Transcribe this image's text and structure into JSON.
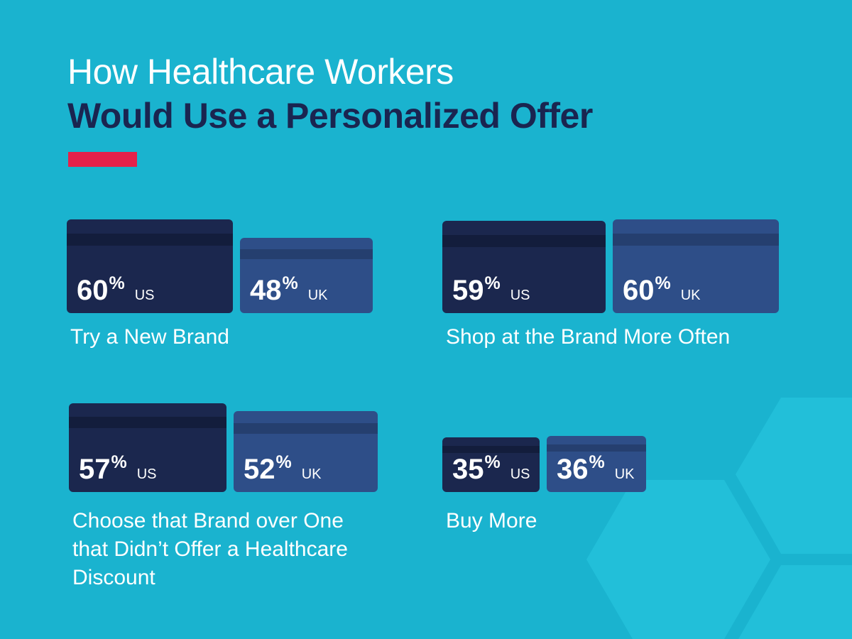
{
  "title": {
    "line1": "How Healthcare Workers",
    "line2": "Would Use a Personalized Offer"
  },
  "colors": {
    "background": "#1ab3cf",
    "hexagon": "#22bfd9",
    "title_light": "#ffffff",
    "title_dark": "#1a2550",
    "accent": "#e5214a",
    "us_card": "#1b274e",
    "us_stripe": "#131d3c",
    "uk_card": "#2e4e88",
    "uk_stripe": "#253f6f",
    "text": "#ffffff"
  },
  "chart_data": {
    "type": "bar",
    "categories": [
      "Try a New Brand",
      "Shop at the Brand More Often",
      "Choose that Brand over One that Didn’t Offer a Healthcare Discount",
      "Buy More"
    ],
    "category_lines": [
      [
        "Try a New Brand"
      ],
      [
        "Shop at the Brand More Often"
      ],
      [
        "Choose that Brand over One",
        "that Didn’t Offer a Healthcare",
        "Discount"
      ],
      [
        "Buy More"
      ]
    ],
    "unit": "%",
    "series": [
      {
        "name": "US",
        "values": [
          60,
          59,
          57,
          35
        ]
      },
      {
        "name": "UK",
        "values": [
          48,
          60,
          52,
          36
        ]
      }
    ]
  }
}
